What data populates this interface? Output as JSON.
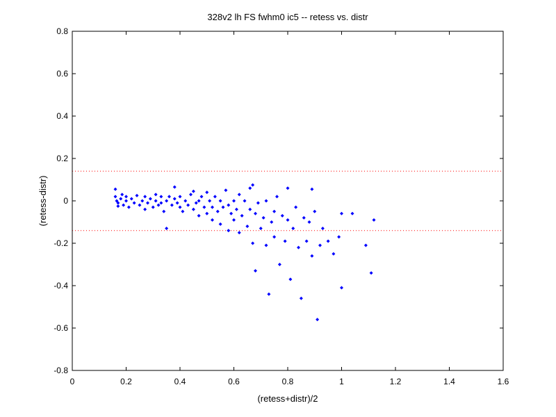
{
  "chart_data": {
    "type": "scatter",
    "title": "328v2 lh FS fwhm0 ic5 -- retess vs. distr",
    "xlabel": "(retess+distr)/2",
    "ylabel": "(retess-distr)",
    "xlim": [
      0,
      1.6
    ],
    "ylim": [
      -0.8,
      0.8
    ],
    "xticks": [
      "0",
      "0.2",
      "0.4",
      "0.6",
      "0.8",
      "1",
      "1.2",
      "1.4",
      "1.6"
    ],
    "yticks": [
      "-0.8",
      "-0.6",
      "-0.4",
      "-0.2",
      "0",
      "0.2",
      "0.4",
      "0.6",
      "0.8"
    ],
    "grid": false,
    "reference_lines": [
      0.14,
      -0.14
    ],
    "colors": {
      "points": "#0000ff",
      "reference": "#ff0000",
      "axes": "#000000"
    },
    "series": [
      {
        "values": [
          [
            0.16,
            0.055
          ],
          [
            0.16,
            0.02
          ],
          [
            0.165,
            0.0
          ],
          [
            0.17,
            -0.01
          ],
          [
            0.17,
            -0.025
          ],
          [
            0.18,
            0.01
          ],
          [
            0.185,
            0.03
          ],
          [
            0.19,
            -0.02
          ],
          [
            0.2,
            0.0
          ],
          [
            0.2,
            0.02
          ],
          [
            0.21,
            -0.03
          ],
          [
            0.22,
            0.01
          ],
          [
            0.23,
            -0.01
          ],
          [
            0.24,
            0.025
          ],
          [
            0.25,
            -0.02
          ],
          [
            0.26,
            0.0
          ],
          [
            0.27,
            -0.04
          ],
          [
            0.27,
            0.02
          ],
          [
            0.28,
            -0.01
          ],
          [
            0.29,
            0.01
          ],
          [
            0.3,
            -0.03
          ],
          [
            0.31,
            0.0
          ],
          [
            0.31,
            0.03
          ],
          [
            0.32,
            -0.02
          ],
          [
            0.33,
            -0.01
          ],
          [
            0.33,
            0.02
          ],
          [
            0.34,
            -0.05
          ],
          [
            0.35,
            0.0
          ],
          [
            0.35,
            -0.13
          ],
          [
            0.36,
            0.02
          ],
          [
            0.37,
            -0.02
          ],
          [
            0.38,
            0.01
          ],
          [
            0.38,
            0.065
          ],
          [
            0.39,
            -0.01
          ],
          [
            0.4,
            -0.03
          ],
          [
            0.4,
            0.02
          ],
          [
            0.41,
            -0.05
          ],
          [
            0.42,
            0.0
          ],
          [
            0.43,
            -0.02
          ],
          [
            0.44,
            0.03
          ],
          [
            0.45,
            -0.04
          ],
          [
            0.45,
            0.045
          ],
          [
            0.46,
            -0.01
          ],
          [
            0.47,
            0.0
          ],
          [
            0.47,
            -0.07
          ],
          [
            0.48,
            0.02
          ],
          [
            0.49,
            -0.03
          ],
          [
            0.5,
            -0.06
          ],
          [
            0.5,
            0.04
          ],
          [
            0.51,
            0.0
          ],
          [
            0.52,
            -0.09
          ],
          [
            0.52,
            -0.03
          ],
          [
            0.53,
            0.02
          ],
          [
            0.54,
            -0.05
          ],
          [
            0.55,
            0.0
          ],
          [
            0.55,
            -0.11
          ],
          [
            0.56,
            -0.03
          ],
          [
            0.57,
            0.05
          ],
          [
            0.58,
            -0.02
          ],
          [
            0.58,
            -0.14
          ],
          [
            0.59,
            -0.06
          ],
          [
            0.6,
            0.0
          ],
          [
            0.6,
            -0.09
          ],
          [
            0.61,
            -0.04
          ],
          [
            0.62,
            -0.15
          ],
          [
            0.62,
            0.03
          ],
          [
            0.63,
            -0.07
          ],
          [
            0.64,
            0.0
          ],
          [
            0.65,
            -0.12
          ],
          [
            0.66,
            -0.04
          ],
          [
            0.66,
            0.06
          ],
          [
            0.67,
            -0.2
          ],
          [
            0.67,
            0.075
          ],
          [
            0.68,
            -0.33
          ],
          [
            0.68,
            -0.06
          ],
          [
            0.69,
            -0.01
          ],
          [
            0.7,
            -0.13
          ],
          [
            0.71,
            -0.08
          ],
          [
            0.72,
            0.0
          ],
          [
            0.72,
            -0.21
          ],
          [
            0.73,
            -0.44
          ],
          [
            0.74,
            -0.1
          ],
          [
            0.75,
            -0.05
          ],
          [
            0.75,
            -0.17
          ],
          [
            0.76,
            0.02
          ],
          [
            0.77,
            -0.3
          ],
          [
            0.78,
            -0.07
          ],
          [
            0.79,
            -0.19
          ],
          [
            0.8,
            -0.09
          ],
          [
            0.8,
            0.06
          ],
          [
            0.81,
            -0.37
          ],
          [
            0.82,
            -0.13
          ],
          [
            0.83,
            -0.03
          ],
          [
            0.84,
            -0.22
          ],
          [
            0.85,
            -0.46
          ],
          [
            0.86,
            -0.08
          ],
          [
            0.87,
            -0.19
          ],
          [
            0.88,
            -0.1
          ],
          [
            0.89,
            -0.26
          ],
          [
            0.89,
            0.055
          ],
          [
            0.9,
            -0.05
          ],
          [
            0.91,
            -0.56
          ],
          [
            0.92,
            -0.21
          ],
          [
            0.93,
            -0.13
          ],
          [
            0.95,
            -0.19
          ],
          [
            0.97,
            -0.25
          ],
          [
            0.99,
            -0.17
          ],
          [
            1.0,
            -0.06
          ],
          [
            1.0,
            -0.41
          ],
          [
            1.04,
            -0.06
          ],
          [
            1.09,
            -0.21
          ],
          [
            1.11,
            -0.34
          ],
          [
            1.12,
            -0.09
          ]
        ]
      }
    ]
  }
}
